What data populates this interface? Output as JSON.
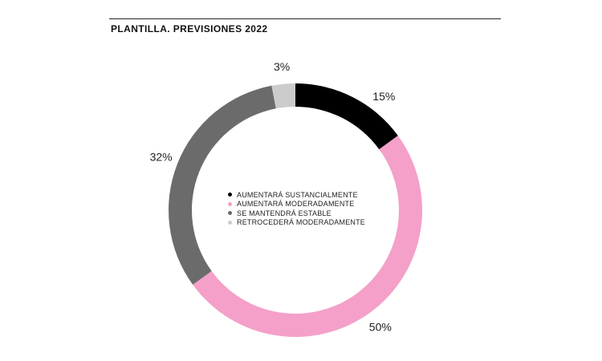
{
  "header": {
    "title": "PLANTILLA.  PREVISIONES 2022"
  },
  "chart_data": {
    "type": "pie",
    "variant": "donut",
    "title": "PLANTILLA.  PREVISIONES 2022",
    "categories": [
      "AUMENTARÁ SUSTANCIALMENTE",
      "AUMENTARÁ MODERADAMENTE",
      "SE MANTENDRÁ ESTABLE",
      "RETROCEDERÁ MODERADAMENTE"
    ],
    "values": [
      15,
      50,
      32,
      3
    ],
    "data_labels": [
      "15%",
      "50%",
      "32%",
      "3%"
    ],
    "colors": [
      "#000000",
      "#f4a0c8",
      "#6b6b6b",
      "#cccccc"
    ],
    "legend_position": "center"
  }
}
